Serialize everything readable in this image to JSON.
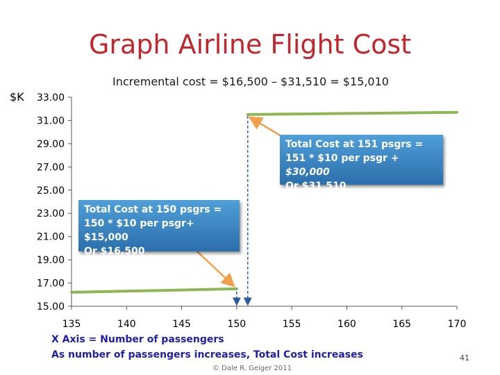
{
  "slide": {
    "page_number": "41",
    "copyright": "© Dale R. Geiger 2011"
  },
  "callouts": {
    "cost151": {
      "line1": "Total Cost at 151 psgrs =",
      "line2_plain": "151 * $10 per psgr + ",
      "line2_italic": "$30,000",
      "line3": "Or $31,510"
    },
    "cost150": {
      "line1": "Total Cost at 150 psgrs =",
      "line2": "150  * $10 per psgr+ $15,000",
      "line3": "Or $16,500"
    }
  },
  "colors": {
    "title": "#c0272d",
    "series": "#8db654",
    "arrow": "#f0a04a",
    "dashed": "#2a5aa0",
    "axis_text": "#1d1db0"
  },
  "chart_data": {
    "type": "line",
    "title": "Graph Airline Flight Cost",
    "subtitle": "Incremental cost = $16,500 – $31,510 = $15,010",
    "ylabel": "$K",
    "xlabel": "X Axis = Number of passengers",
    "note": "As number of passengers increases, Total Cost increases",
    "xlim": [
      135,
      170
    ],
    "ylim": [
      15,
      33
    ],
    "xticks": [
      135,
      140,
      145,
      150,
      155,
      160,
      165,
      170
    ],
    "xtick_labels": [
      "135",
      "140",
      "145",
      "150",
      "155",
      "160",
      "165",
      "170"
    ],
    "yticks": [
      15,
      17,
      19,
      21,
      23,
      25,
      27,
      29,
      31,
      33
    ],
    "ytick_labels": [
      "15.00",
      "17.00",
      "19.00",
      "21.00",
      "23.00",
      "25.00",
      "27.00",
      "29.00",
      "31.00",
      "33.00"
    ],
    "series": [
      {
        "values": [
          [
            135,
            16.2
          ],
          [
            150,
            16.5
          ]
        ]
      },
      {
        "values": [
          [
            151,
            31.51
          ],
          [
            170,
            31.7
          ]
        ]
      }
    ],
    "markers_x": [
      150,
      151
    ],
    "grid": false
  }
}
